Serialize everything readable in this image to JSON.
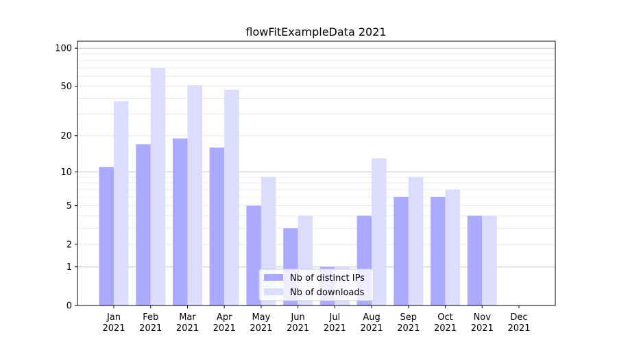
{
  "chart_data": {
    "type": "bar",
    "title": "flowFitExampleData 2021",
    "xlabel": "",
    "ylabel": "",
    "y_scale": "log(1+y)",
    "ylim": [
      0,
      110
    ],
    "yticks": [
      0,
      1,
      2,
      5,
      10,
      20,
      50,
      100
    ],
    "grid": true,
    "legend_position": "bottom-center",
    "categories": [
      "Jan\n2021",
      "Feb\n2021",
      "Mar\n2021",
      "Apr\n2021",
      "May\n2021",
      "Jun\n2021",
      "Jul\n2021",
      "Aug\n2021",
      "Sep\n2021",
      "Oct\n2021",
      "Nov\n2021",
      "Dec\n2021"
    ],
    "series": [
      {
        "name": "Nb of distinct IPs",
        "color": "#aaaaff",
        "values": [
          11,
          17,
          19,
          16,
          5,
          3,
          1,
          4,
          6,
          6,
          4,
          0
        ]
      },
      {
        "name": "Nb of downloads",
        "color": "#dcdcff",
        "values": [
          38,
          70,
          51,
          47,
          9,
          4,
          1,
          13,
          9,
          7,
          4,
          0
        ]
      }
    ]
  }
}
